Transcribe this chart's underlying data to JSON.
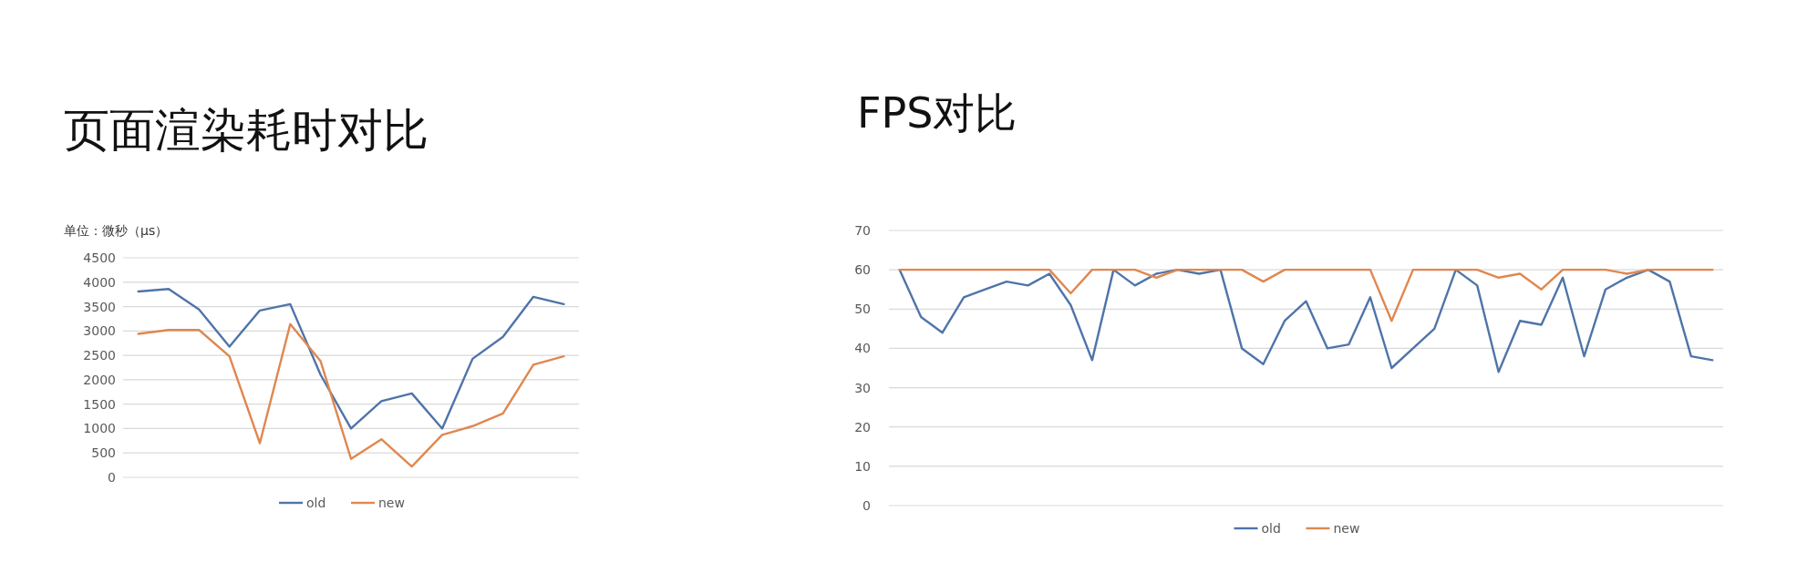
{
  "chart_data": [
    {
      "type": "line",
      "title": "页面渲染耗时对比",
      "ylabel": "单位：微秒（μs）",
      "categories": [
        null,
        null,
        null,
        null,
        null,
        null,
        null,
        null,
        null,
        null,
        null,
        null,
        null,
        null,
        null
      ],
      "ylim": [
        0,
        4500
      ],
      "yticks": [
        0,
        500,
        1000,
        1500,
        2000,
        2500,
        3000,
        3500,
        4000,
        4500
      ],
      "grid": "y",
      "legend": "bottom",
      "marker": "none",
      "line_style": "solid",
      "series": [
        {
          "name": "old",
          "color": "#4f74a8",
          "values": [
            3810,
            3860,
            3440,
            2680,
            3420,
            3550,
            2100,
            1000,
            1560,
            1720,
            1000,
            2430,
            2880,
            3700,
            3550
          ]
        },
        {
          "name": "new",
          "color": "#e0874f",
          "values": [
            2940,
            3020,
            3020,
            2480,
            700,
            3140,
            2380,
            380,
            780,
            220,
            870,
            1050,
            1310,
            2310,
            2480
          ]
        }
      ]
    },
    {
      "type": "line",
      "title": "FPS对比",
      "categories": [
        null,
        null,
        null,
        null,
        null,
        null,
        null,
        null,
        null,
        null,
        null,
        null,
        null,
        null,
        null,
        null,
        null,
        null,
        null,
        null,
        null,
        null,
        null,
        null,
        null,
        null,
        null,
        null,
        null,
        null,
        null,
        null,
        null,
        null,
        null,
        null,
        null,
        null,
        null
      ],
      "ylim": [
        0,
        70
      ],
      "yticks": [
        0,
        10,
        20,
        30,
        40,
        50,
        60,
        70
      ],
      "grid": "y",
      "legend": "bottom",
      "marker": "none",
      "line_style": "solid",
      "series": [
        {
          "name": "old",
          "color": "#4f74a8",
          "values": [
            60,
            48,
            44,
            53,
            55,
            57,
            56,
            59,
            51,
            37,
            60,
            56,
            59,
            60,
            59,
            60,
            40,
            36,
            47,
            52,
            40,
            41,
            53,
            35,
            40,
            45,
            60,
            56,
            34,
            47,
            46,
            58,
            38,
            55,
            58,
            60,
            57,
            38,
            37
          ]
        },
        {
          "name": "new",
          "color": "#e0874f",
          "values": [
            60,
            60,
            60,
            60,
            60,
            60,
            60,
            60,
            54,
            60,
            60,
            60,
            58,
            60,
            60,
            60,
            60,
            57,
            60,
            60,
            60,
            60,
            60,
            47,
            60,
            60,
            60,
            60,
            58,
            59,
            55,
            60,
            60,
            60,
            59,
            60,
            60,
            60,
            60
          ]
        }
      ]
    }
  ]
}
